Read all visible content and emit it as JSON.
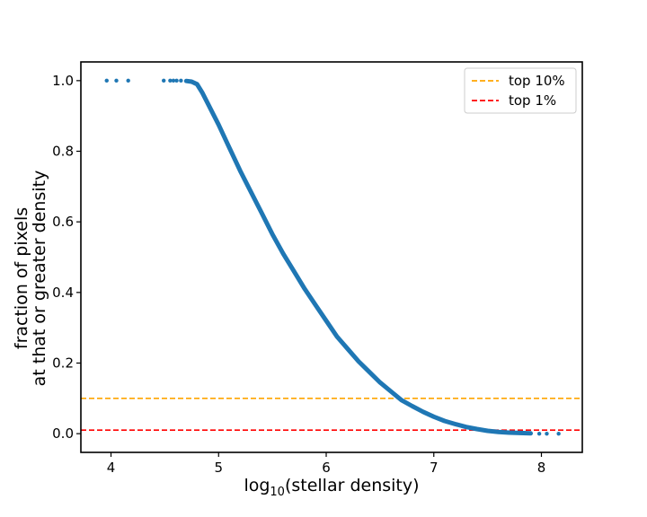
{
  "chart_data": {
    "type": "scatter",
    "xlabel_prefix": "log",
    "xlabel_sub": "10",
    "xlabel_suffix": "(stellar density)",
    "ylabel_line1": "fraction of pixels",
    "ylabel_line2": "at that or greater density",
    "xlim": [
      3.72,
      8.38
    ],
    "ylim": [
      -0.053,
      1.053
    ],
    "xticks": [
      4,
      5,
      6,
      7,
      8
    ],
    "xtick_labels": [
      "4",
      "5",
      "6",
      "7",
      "8"
    ],
    "yticks": [
      0.0,
      0.2,
      0.4,
      0.6,
      0.8,
      1.0
    ],
    "ytick_labels": [
      "0.0",
      "0.2",
      "0.4",
      "0.6",
      "0.8",
      "1.0"
    ],
    "grid": false,
    "legend_position": "top-right",
    "series": [
      {
        "kind": "scatter",
        "color": "#1f77b4",
        "points": [
          [
            3.96,
            1.0
          ],
          [
            4.05,
            1.0
          ],
          [
            4.16,
            1.0
          ],
          [
            4.49,
            1.0
          ],
          [
            4.55,
            1.0
          ],
          [
            4.58,
            1.0
          ],
          [
            4.61,
            1.0
          ],
          [
            4.65,
            1.0
          ],
          [
            4.7,
            0.999
          ],
          [
            4.75,
            0.997
          ],
          [
            4.8,
            0.99
          ],
          [
            4.85,
            0.965
          ],
          [
            4.9,
            0.935
          ],
          [
            5.0,
            0.875
          ],
          [
            5.1,
            0.81
          ],
          [
            5.2,
            0.745
          ],
          [
            5.3,
            0.685
          ],
          [
            5.4,
            0.625
          ],
          [
            5.5,
            0.565
          ],
          [
            5.6,
            0.51
          ],
          [
            5.7,
            0.46
          ],
          [
            5.8,
            0.41
          ],
          [
            5.9,
            0.365
          ],
          [
            6.0,
            0.32
          ],
          [
            6.1,
            0.275
          ],
          [
            6.2,
            0.24
          ],
          [
            6.3,
            0.205
          ],
          [
            6.4,
            0.175
          ],
          [
            6.5,
            0.145
          ],
          [
            6.6,
            0.12
          ],
          [
            6.7,
            0.095
          ],
          [
            6.8,
            0.078
          ],
          [
            6.9,
            0.062
          ],
          [
            7.0,
            0.048
          ],
          [
            7.1,
            0.036
          ],
          [
            7.2,
            0.027
          ],
          [
            7.3,
            0.019
          ],
          [
            7.4,
            0.013
          ],
          [
            7.5,
            0.008
          ],
          [
            7.6,
            0.005
          ],
          [
            7.7,
            0.003
          ],
          [
            7.8,
            0.002
          ],
          [
            7.9,
            0.001
          ],
          [
            7.98,
            0.0
          ],
          [
            8.05,
            0.0
          ],
          [
            8.16,
            0.0
          ]
        ]
      },
      {
        "kind": "hline",
        "name": "top 10%",
        "y": 0.1,
        "color": "#ffa500"
      },
      {
        "kind": "hline",
        "name": "top 1%",
        "y": 0.01,
        "color": "#ff0000"
      }
    ]
  }
}
